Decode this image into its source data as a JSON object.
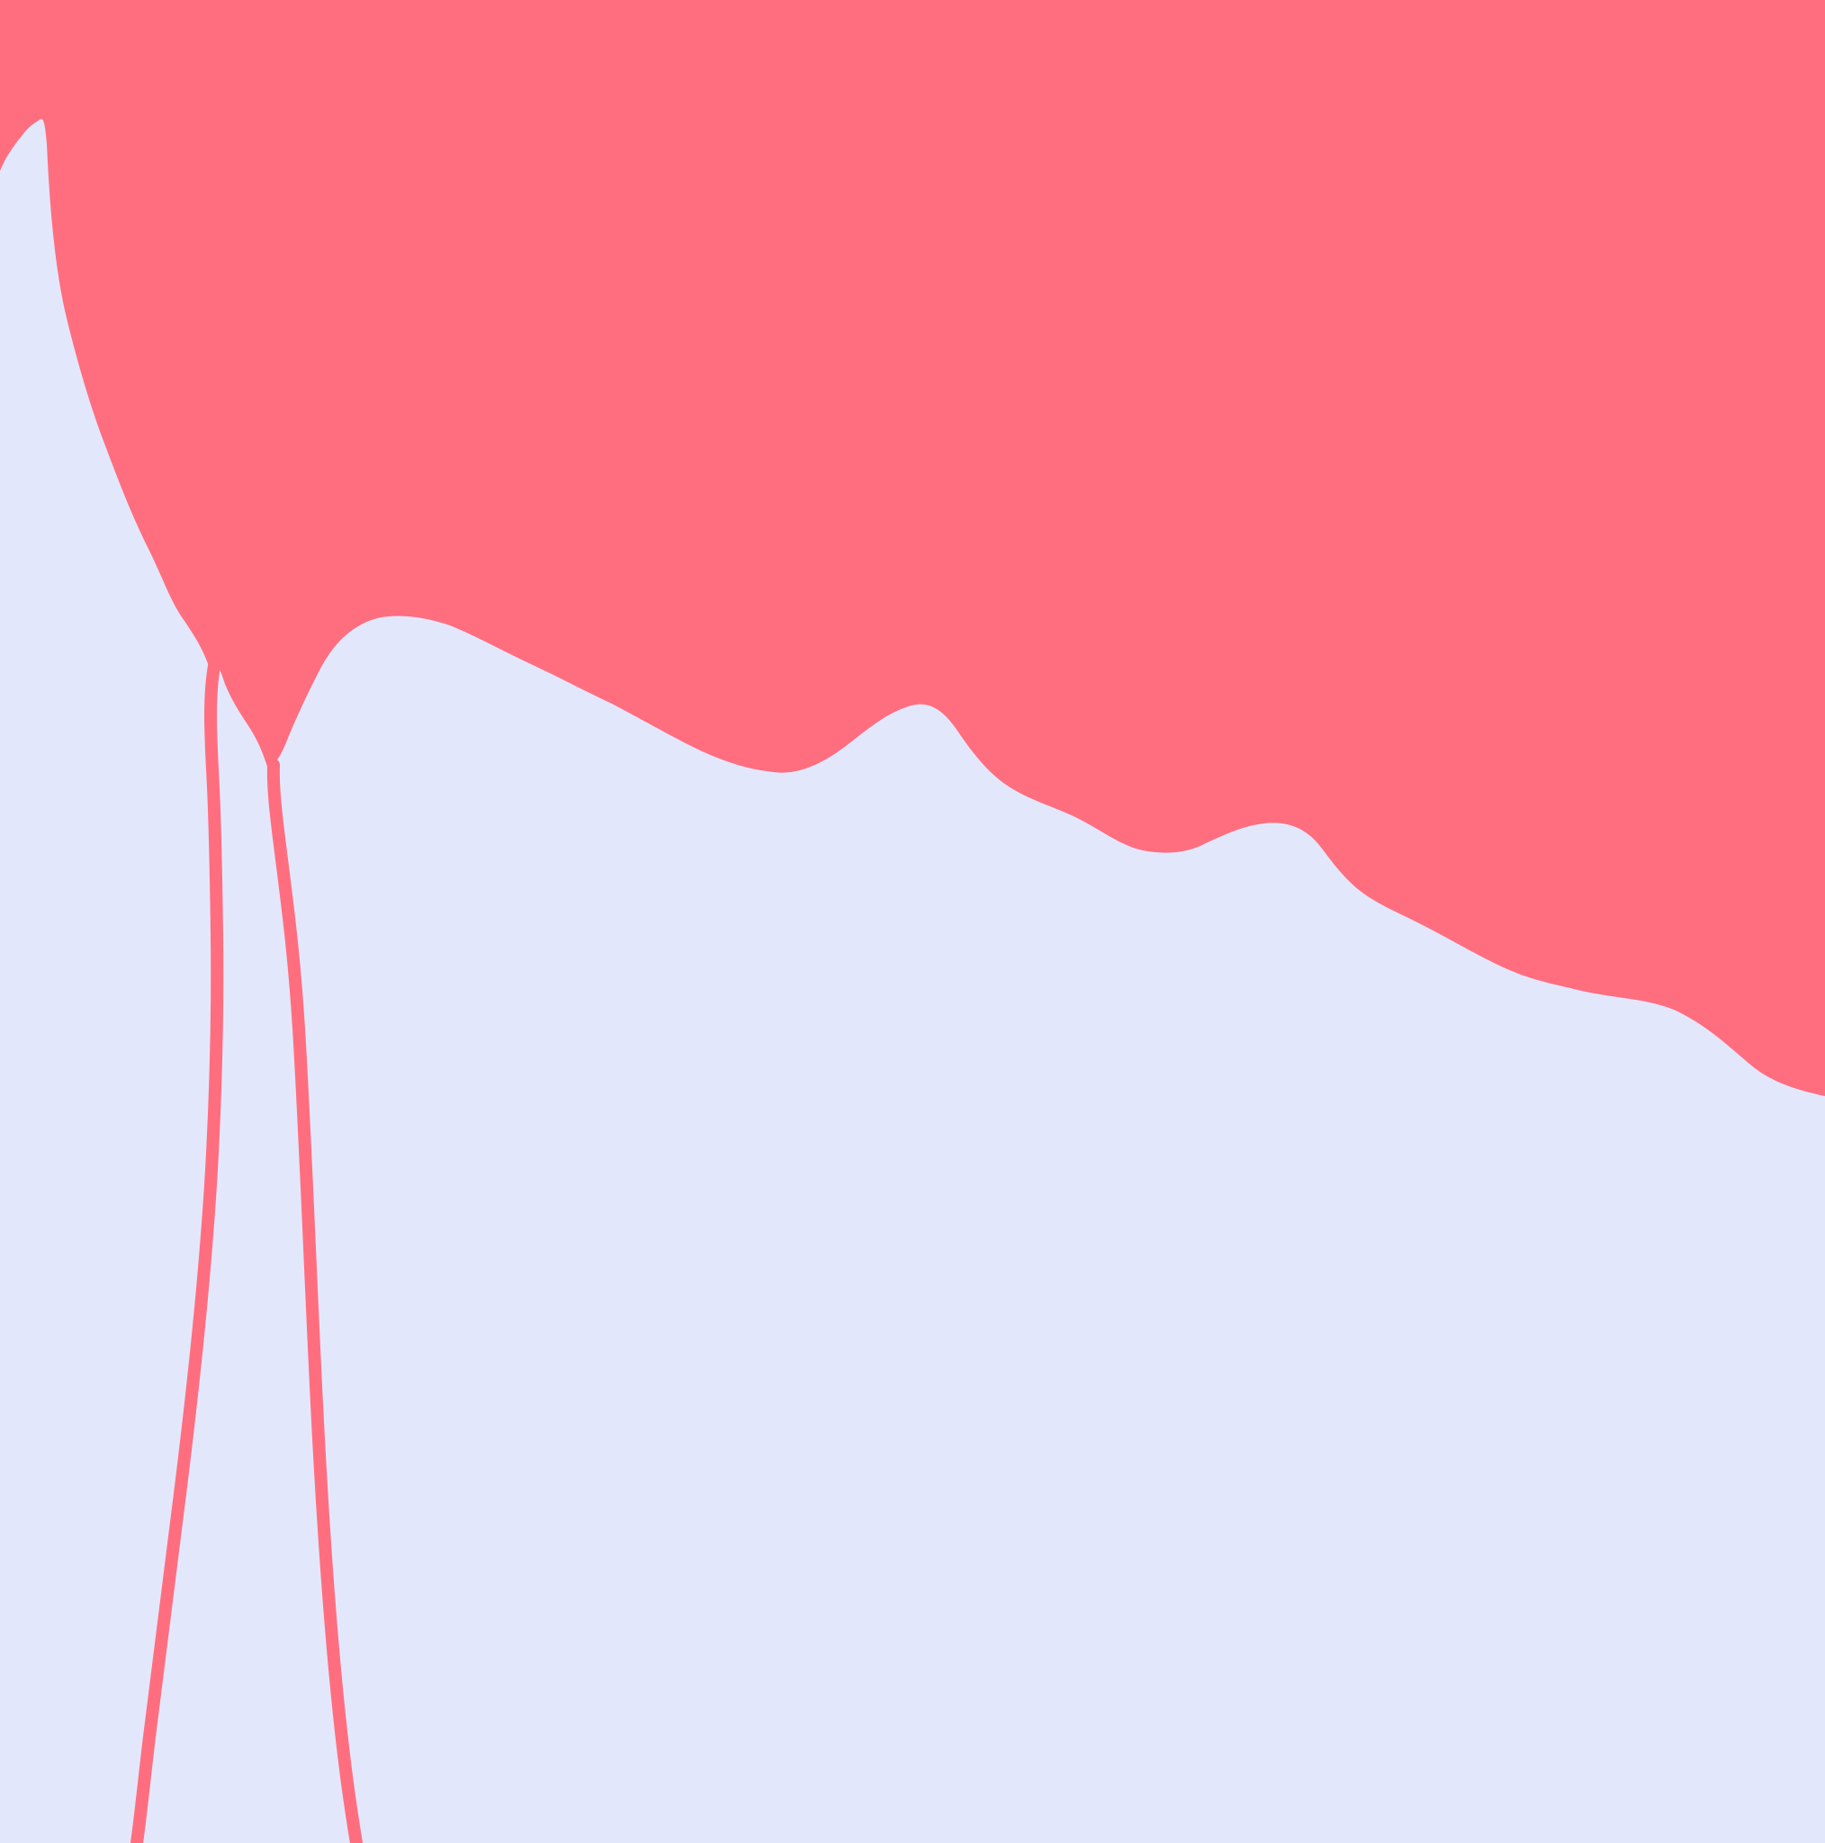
{
  "palette": {
    "background": "#e3e7fc",
    "pink": "#ff6e7f"
  }
}
